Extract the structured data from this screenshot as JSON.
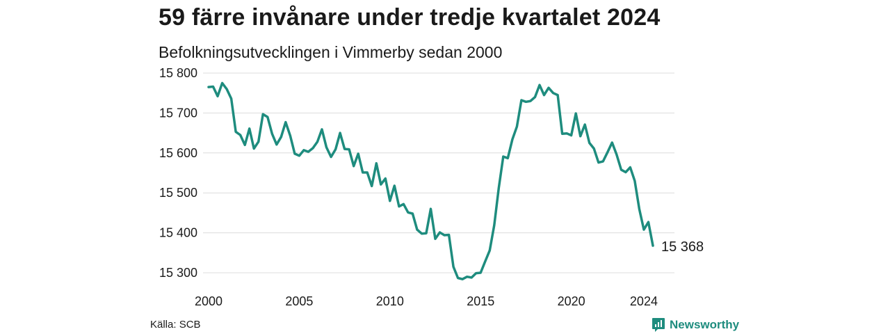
{
  "title": "59 färre invånare under tredje kvartalet 2024",
  "subtitle": "Befolkningsutvecklingen i Vimmerby sedan 2000",
  "source": "Källa: SCB",
  "brand": "Newsworthy",
  "colors": {
    "line": "#1e8c7e",
    "grid": "#dcdcdc",
    "brand": "#1e8c7e"
  },
  "chart_data": {
    "type": "line",
    "title": "59 färre invånare under tredje kvartalet 2024",
    "subtitle": "Befolkningsutvecklingen i Vimmerby sedan 2000",
    "xlabel": "",
    "ylabel": "",
    "grid": true,
    "xlim": [
      2000,
      2024.5
    ],
    "ylim": [
      15280,
      15800
    ],
    "x_ticks": [
      2000,
      2005,
      2010,
      2015,
      2020,
      2024
    ],
    "y_ticks": [
      15300,
      15400,
      15500,
      15600,
      15700,
      15800
    ],
    "y_tick_labels": [
      "15 300",
      "15 400",
      "15 500",
      "15 600",
      "15 700",
      "15 800"
    ],
    "end_label": "15 368",
    "series": [
      {
        "x": [
          2000.0,
          2000.25,
          2000.5,
          2000.75,
          2001.0,
          2001.25,
          2001.5,
          2001.75,
          2002.0,
          2002.25,
          2002.5,
          2002.75,
          2003.0,
          2003.25,
          2003.5,
          2003.75,
          2004.0,
          2004.25,
          2004.5,
          2004.75,
          2005.0,
          2005.25,
          2005.5,
          2005.75,
          2006.0,
          2006.25,
          2006.5,
          2006.75,
          2007.0,
          2007.25,
          2007.5,
          2007.75,
          2008.0,
          2008.25,
          2008.5,
          2008.75,
          2009.0,
          2009.25,
          2009.5,
          2009.75,
          2010.0,
          2010.25,
          2010.5,
          2010.75,
          2011.0,
          2011.25,
          2011.5,
          2011.75,
          2012.0,
          2012.25,
          2012.5,
          2012.75,
          2013.0,
          2013.25,
          2013.5,
          2013.75,
          2014.0,
          2014.25,
          2014.5,
          2014.75,
          2015.0,
          2015.25,
          2015.5,
          2015.75,
          2016.0,
          2016.25,
          2016.5,
          2016.75,
          2017.0,
          2017.25,
          2017.5,
          2017.75,
          2018.0,
          2018.25,
          2018.5,
          2018.75,
          2019.0,
          2019.25,
          2019.5,
          2019.75,
          2020.0,
          2020.25,
          2020.5,
          2020.75,
          2021.0,
          2021.25,
          2021.5,
          2021.75,
          2022.0,
          2022.25,
          2022.5,
          2022.75,
          2023.0,
          2023.25,
          2023.5,
          2023.75,
          2024.0,
          2024.25,
          2024.5
        ],
        "values": [
          15765,
          15766,
          15742,
          15775,
          15760,
          15736,
          15653,
          15645,
          15620,
          15661,
          15611,
          15628,
          15697,
          15690,
          15648,
          15621,
          15640,
          15677,
          15643,
          15598,
          15593,
          15607,
          15603,
          15612,
          15628,
          15659,
          15614,
          15590,
          15609,
          15650,
          15610,
          15609,
          15567,
          15598,
          15551,
          15551,
          15517,
          15574,
          15521,
          15536,
          15480,
          15518,
          15466,
          15472,
          15451,
          15448,
          15408,
          15398,
          15399,
          15460,
          15385,
          15401,
          15394,
          15395,
          15315,
          15287,
          15284,
          15290,
          15288,
          15299,
          15300,
          15328,
          15356,
          15419,
          15512,
          15591,
          15587,
          15634,
          15666,
          15732,
          15728,
          15730,
          15740,
          15770,
          15745,
          15763,
          15750,
          15745,
          15648,
          15649,
          15644,
          15699,
          15642,
          15671,
          15625,
          15611,
          15576,
          15579,
          15602,
          15626,
          15596,
          15558,
          15552,
          15564,
          15530,
          15460,
          15408,
          15427,
          15368
        ]
      }
    ]
  }
}
